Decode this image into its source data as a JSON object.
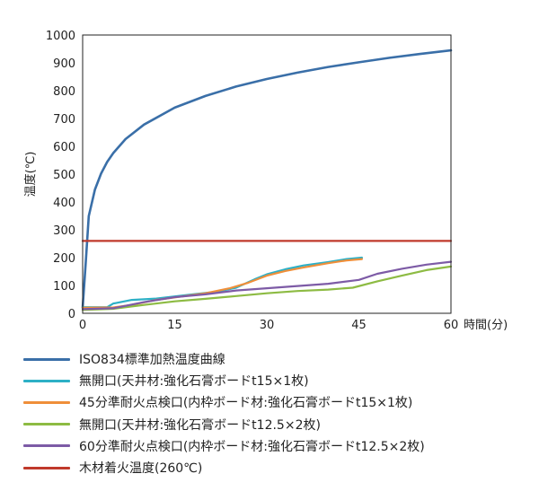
{
  "chart_data": {
    "type": "line",
    "xlabel": "時間(分)",
    "ylabel": "温度(℃)",
    "xlim": [
      0,
      60
    ],
    "ylim": [
      0,
      1000
    ],
    "xticks": [
      0,
      15,
      30,
      45,
      60
    ],
    "yticks": [
      0,
      100,
      200,
      300,
      400,
      500,
      600,
      700,
      800,
      900,
      1000
    ],
    "xtick_labels": [
      "0",
      "15",
      "30",
      "45",
      "60"
    ],
    "ytick_labels": [
      "0",
      "100",
      "200",
      "300",
      "400",
      "500",
      "600",
      "700",
      "800",
      "900",
      "1000"
    ],
    "grid": false,
    "legend_position": "bottom",
    "series": [
      {
        "name": "ISO834標準加熱温度曲線",
        "color": "#3a6fa8",
        "x": [
          0,
          0.5,
          1,
          2,
          3,
          4,
          5,
          7,
          10,
          15,
          20,
          25,
          30,
          35,
          40,
          45,
          50,
          55,
          60
        ],
        "y": [
          20,
          180,
          349,
          445,
          502,
          544,
          576,
          626,
          678,
          739,
          781,
          815,
          842,
          865,
          885,
          902,
          918,
          932,
          945
        ]
      },
      {
        "name": "無開口(天井材:強化石膏ボードt15×1枚)",
        "color": "#2db0c6",
        "x": [
          0,
          4,
          5,
          8,
          12,
          18,
          22,
          25,
          28,
          30,
          33,
          36,
          40,
          43,
          45.5
        ],
        "y": [
          22,
          22,
          35,
          48,
          53,
          68,
          78,
          92,
          122,
          140,
          158,
          172,
          184,
          195,
          200
        ]
      },
      {
        "name": "45分準耐火点検口(内枠ボード材:強化石膏ボードt15×1枚)",
        "color": "#ef8f3a",
        "x": [
          0,
          5,
          8,
          12,
          16,
          20,
          24,
          27,
          30,
          33,
          36,
          40,
          43,
          45.5
        ],
        "y": [
          20,
          21,
          30,
          48,
          60,
          72,
          90,
          110,
          135,
          152,
          165,
          180,
          190,
          195
        ]
      },
      {
        "name": "無開口(天井材:強化石膏ボードt12.5×2枚)",
        "color": "#8dbb43",
        "x": [
          0,
          5,
          10,
          15,
          20,
          25,
          30,
          35,
          40,
          44,
          48,
          52,
          56,
          60
        ],
        "y": [
          12,
          16,
          30,
          43,
          52,
          62,
          72,
          80,
          85,
          92,
          115,
          135,
          155,
          168
        ]
      },
      {
        "name": "60分準耐火点検口(内枠ボード材:強化石膏ボードt12.5×2枚)",
        "color": "#7d5ba6",
        "x": [
          0,
          5,
          10,
          15,
          20,
          25,
          30,
          35,
          40,
          45,
          48,
          52,
          56,
          60
        ],
        "y": [
          15,
          18,
          40,
          58,
          68,
          82,
          90,
          98,
          106,
          120,
          142,
          160,
          175,
          185
        ]
      },
      {
        "name": "木材着火温度(260℃)",
        "color": "#c0392b",
        "x": [
          0,
          60
        ],
        "y": [
          260,
          260
        ]
      }
    ]
  }
}
